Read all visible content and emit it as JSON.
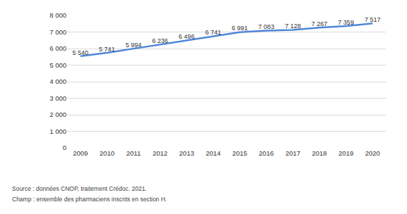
{
  "chart_data": {
    "type": "line",
    "categories": [
      "2009",
      "2010",
      "2011",
      "2012",
      "2013",
      "2014",
      "2015",
      "2016",
      "2017",
      "2018",
      "2019",
      "2020"
    ],
    "values": [
      5540,
      5741,
      5994,
      6236,
      6496,
      6741,
      6991,
      7083,
      7128,
      7267,
      7359,
      7517
    ],
    "value_labels": [
      "5 540",
      "5 741",
      "5 994",
      "6 236",
      "6 496",
      "6 741",
      "6 991",
      "7 083",
      "7 128",
      "7 267",
      "7 359",
      "7 517"
    ],
    "data_labels": true,
    "color": "#4f86d8",
    "line_style": "solid",
    "ylim": [
      0,
      8000
    ],
    "yticks": [
      0,
      {
        "value": 1000,
        "label": "1 000"
      },
      {
        "value": 2000,
        "label": "2 000"
      },
      {
        "value": 3000,
        "label": "3 000"
      },
      {
        "value": 4000,
        "label": "4 000"
      },
      {
        "value": 5000,
        "label": "5 000"
      },
      {
        "value": 6000,
        "label": "6 000"
      },
      {
        "value": 7000,
        "label": "7 000"
      },
      {
        "value": 8000,
        "label": "8 000"
      }
    ],
    "grid": true,
    "annotations": [
      "Source : données CNOP, traitement Crédoc. 2021.",
      "Champ : ensemble des pharmaciens inscrits en section H."
    ]
  }
}
